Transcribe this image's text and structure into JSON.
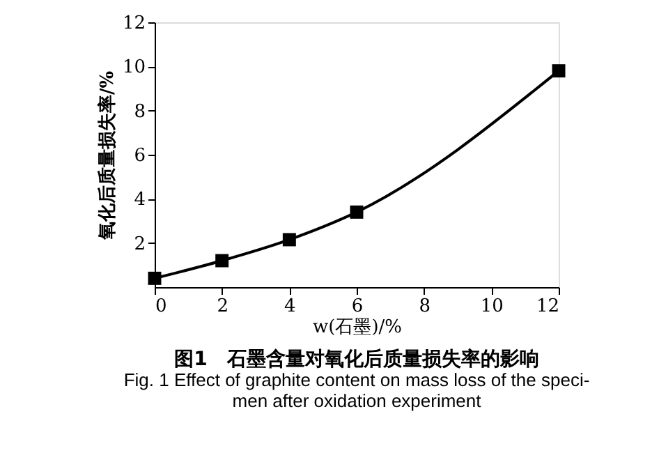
{
  "chart_data": {
    "type": "line",
    "title": "图1　石墨含量对氧化后质量损失率的影响",
    "annotations": [
      "Fig. 1 Effect of graphite content on mass loss of the speci-",
      "men after oxidation experiment"
    ],
    "xlabel": "w(石墨)/%",
    "ylabel": "氧化后质量损失率/%",
    "x": [
      0,
      2,
      4,
      6,
      12
    ],
    "series": [
      {
        "color": "#000000",
        "values": [
          0.4,
          1.2,
          2.15,
          3.4,
          9.8
        ]
      }
    ],
    "xlim": [
      0,
      12
    ],
    "xticks": [
      0,
      2,
      4,
      6,
      8,
      10,
      12
    ],
    "ylim": [
      0,
      12
    ],
    "yticks": [
      2,
      4,
      6,
      8,
      10,
      12
    ],
    "marker": "square",
    "line_style": "solid",
    "grid": false,
    "legend": false
  }
}
